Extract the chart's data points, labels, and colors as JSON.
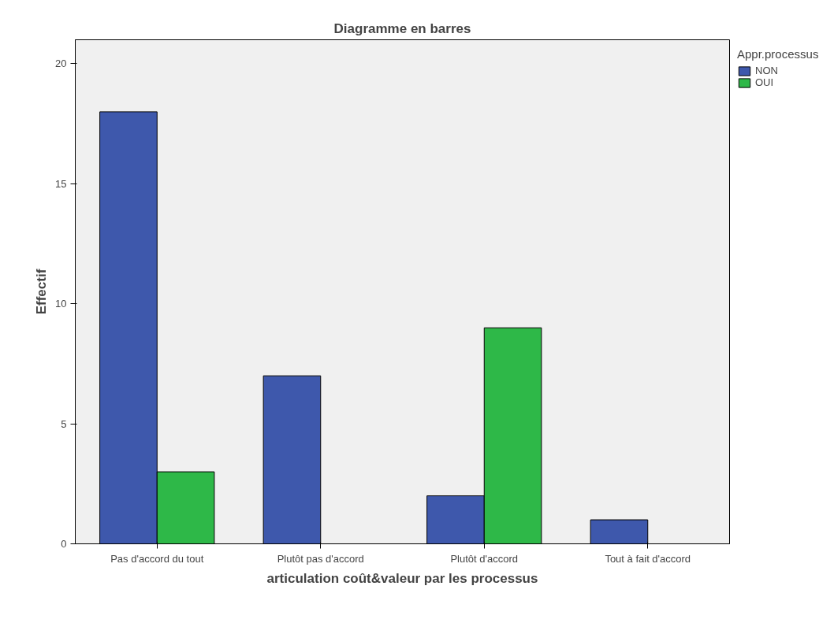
{
  "chart_data": {
    "type": "bar",
    "title": "Diagramme en barres",
    "xlabel": "articulation coût&valeur par les processus",
    "ylabel": "Effectif",
    "legend_title": "Appr.processus",
    "categories": [
      "Pas d'accord du tout",
      "Plutôt pas d'accord",
      "Plutôt d'accord",
      "Tout à fait d'accord"
    ],
    "series": [
      {
        "name": "NON",
        "color": "#3e58ac",
        "values": [
          18,
          7,
          2,
          1
        ]
      },
      {
        "name": "OUI",
        "color": "#2eb848",
        "values": [
          3,
          null,
          9,
          null
        ]
      }
    ],
    "ylim": [
      0,
      21
    ],
    "yticks": [
      0,
      5,
      10,
      15,
      20
    ],
    "grid": false,
    "legend": "top right"
  }
}
